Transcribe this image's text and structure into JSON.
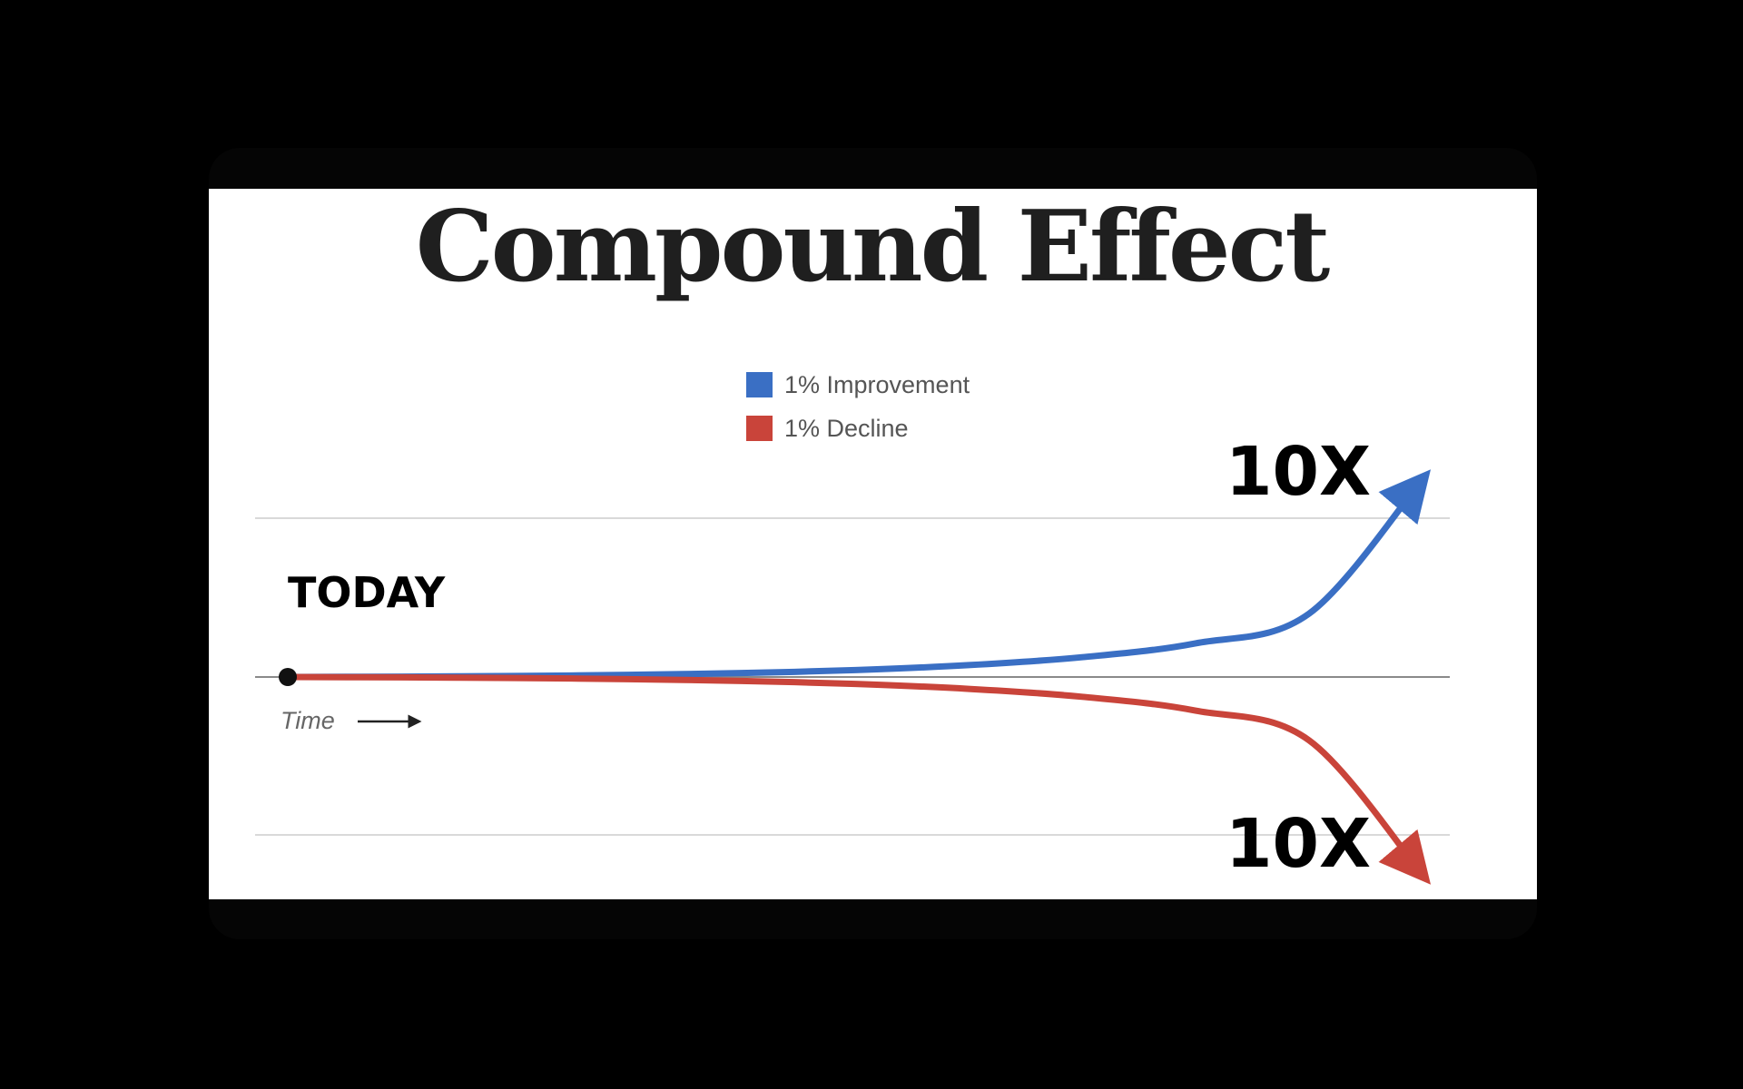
{
  "chart_data": {
    "type": "line",
    "title": "Compound Effect",
    "xlabel": "Time",
    "ylabel": "",
    "grid": true,
    "legend_position": "top-center",
    "x": [
      0,
      1,
      2,
      3,
      4,
      5,
      6,
      7,
      8,
      9,
      10
    ],
    "ylim": [
      -10,
      10
    ],
    "series": [
      {
        "name": "1% Improvement",
        "color": "#3a6fc4",
        "values": [
          0,
          0.02,
          0.05,
          0.11,
          0.2,
          0.35,
          0.6,
          1.0,
          1.7,
          3.2,
          10
        ]
      },
      {
        "name": "1% Decline",
        "color": "#c9443a",
        "values": [
          0,
          -0.02,
          -0.05,
          -0.11,
          -0.2,
          -0.35,
          -0.6,
          -1.0,
          -1.7,
          -3.2,
          -10
        ]
      }
    ],
    "annotations": {
      "start_label": "TODAY",
      "improvement_end_label": "10X",
      "decline_end_label": "10X"
    }
  }
}
